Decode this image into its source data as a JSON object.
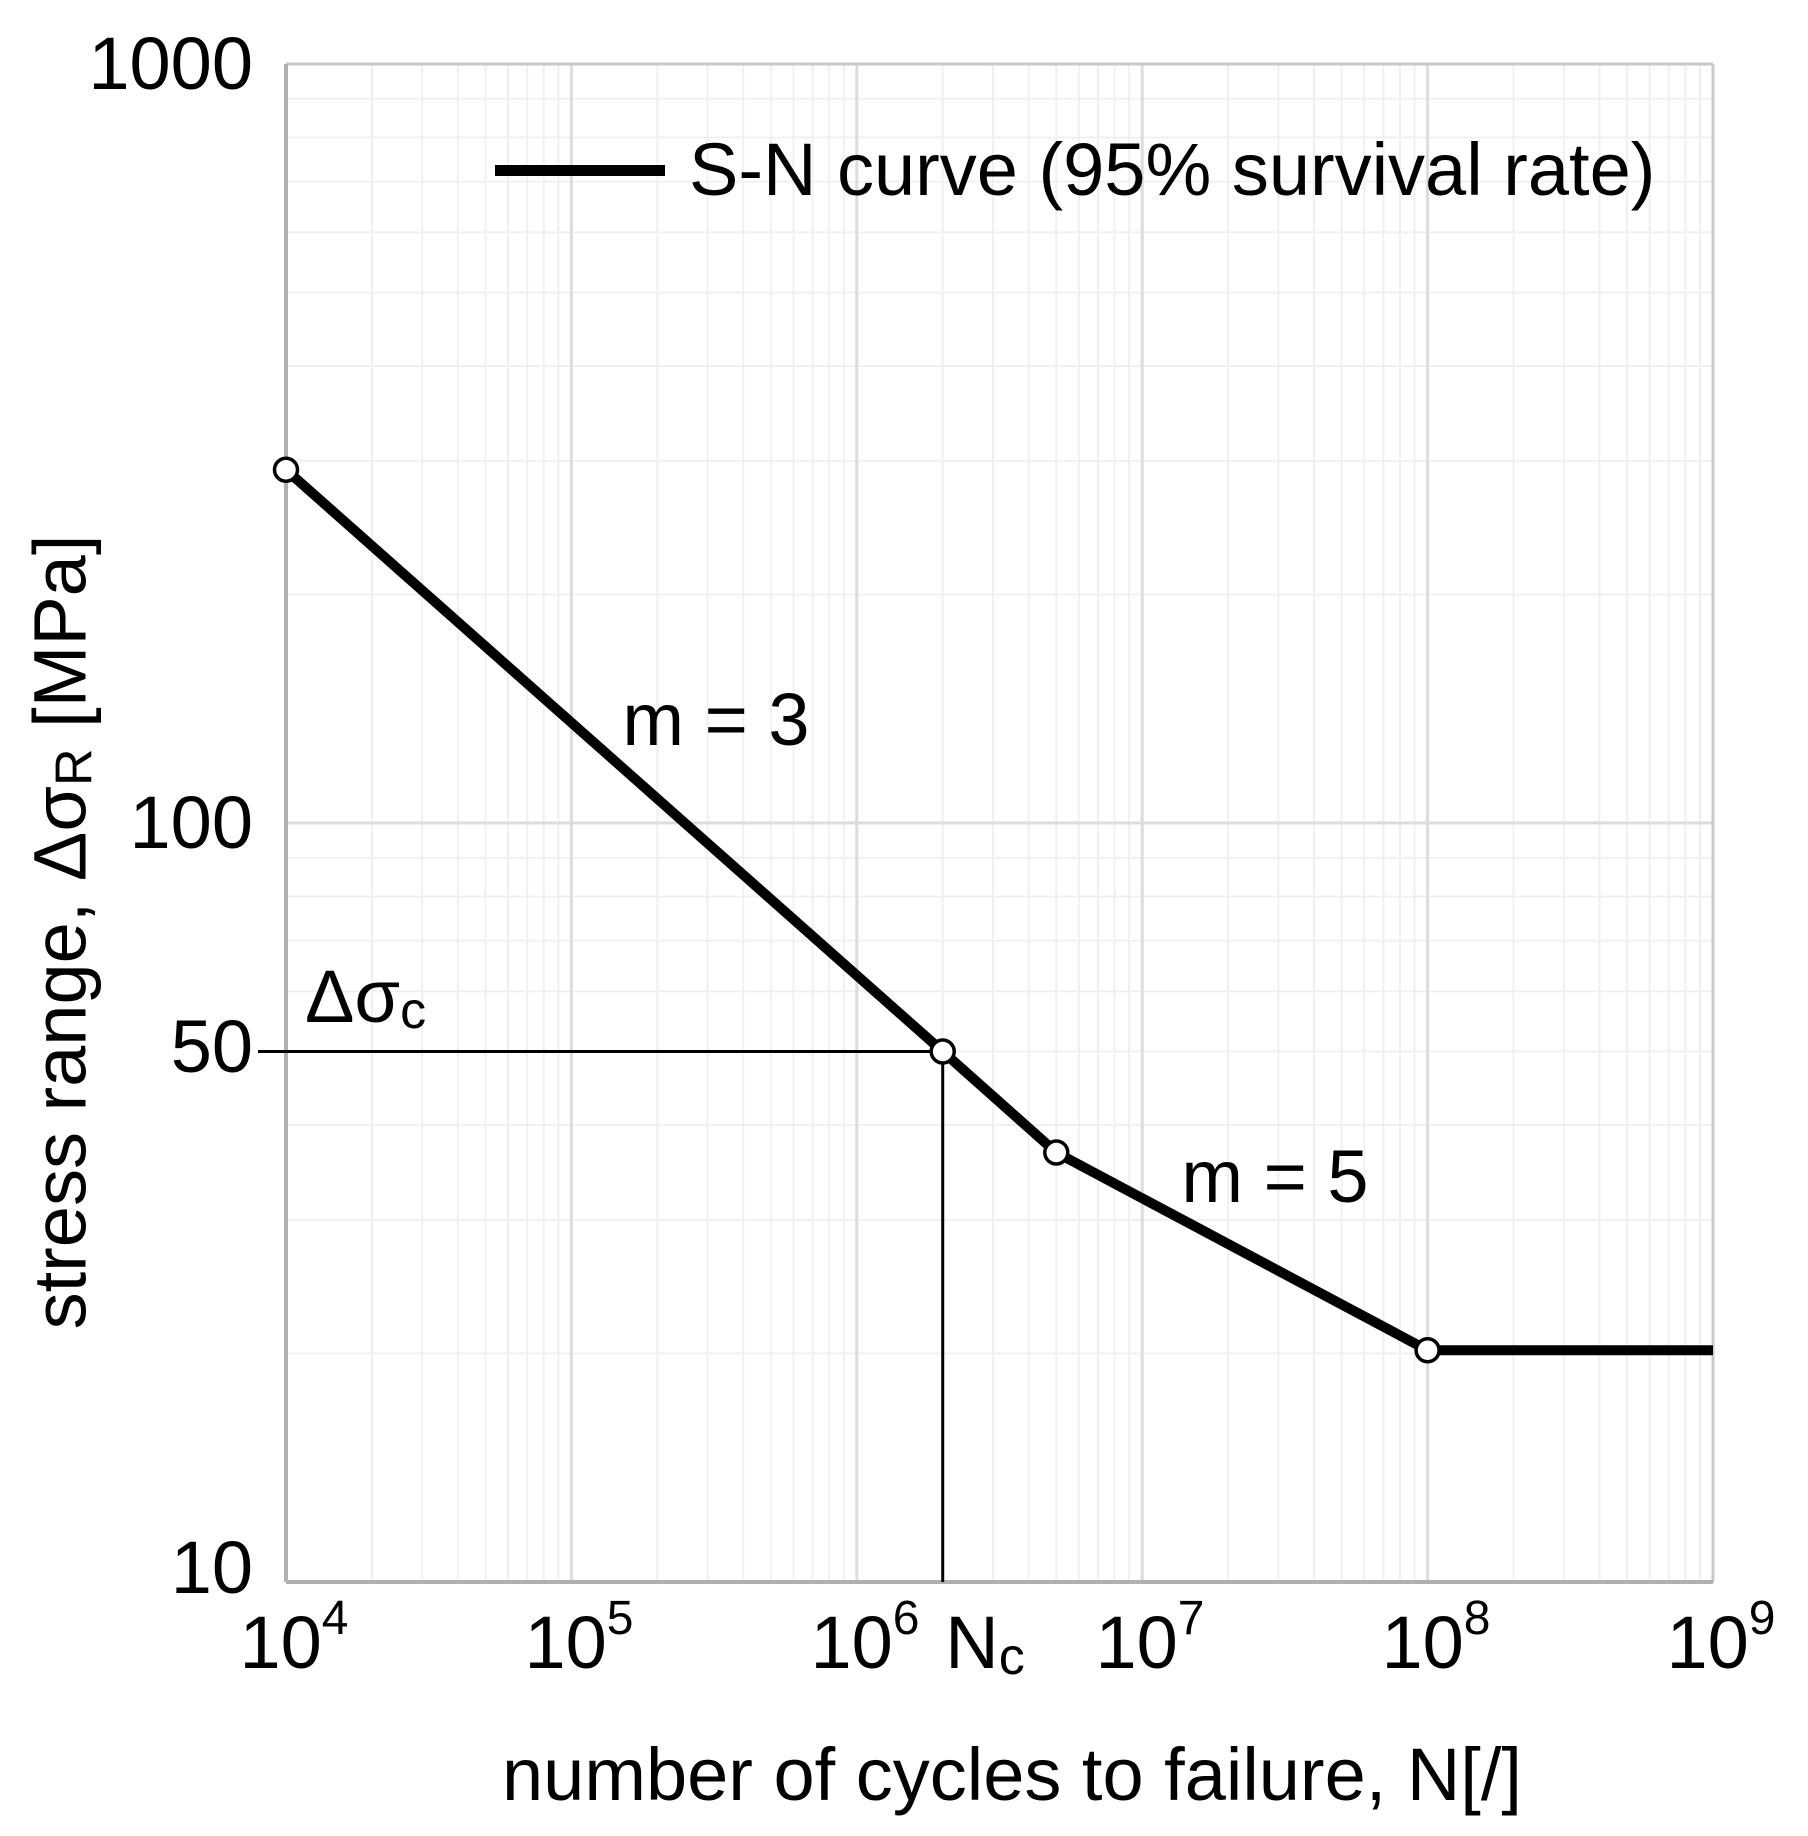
{
  "legend": {
    "label": "S-N curve (95% survival rate)"
  },
  "y_axis": {
    "title_pre": "stress range, Δσ",
    "title_sub": "R",
    "title_post": " [MPa]",
    "ticks": [
      "1000",
      "100",
      "50",
      "10"
    ]
  },
  "x_axis": {
    "title": "number of cycles to failure, N[/]",
    "ticks": [
      {
        "base": "10",
        "exp": "4"
      },
      {
        "base": "10",
        "exp": "5"
      },
      {
        "base": "10",
        "exp": "6"
      },
      {
        "base": "10",
        "exp": "7"
      },
      {
        "base": "10",
        "exp": "8"
      },
      {
        "base": "10",
        "exp": "9"
      }
    ]
  },
  "labels": {
    "delta_sigma_c_base": "Δσ",
    "delta_sigma_c_sub": "c",
    "nc_base": "N",
    "nc_sub": "c",
    "m3": "m = 3",
    "m5": "m = 5"
  },
  "chart_data": {
    "type": "line",
    "title": "",
    "xlabel": "number of cycles to failure, N[/]",
    "ylabel": "stress range, ΔσR [MPa]",
    "x_scale": "log",
    "y_scale": "log",
    "xlim": [
      10000,
      1000000000
    ],
    "ylim": [
      10,
      1000
    ],
    "grid": {
      "minor": true,
      "major": true
    },
    "legend_position": "top-center-inside",
    "colors": {
      "curve": "#000000",
      "minor_grid": "#f0f0f0",
      "major_grid": "#dcdcdc",
      "axis_frame_dark": "#b0b0b0",
      "axis_frame_light": "#c8c8c8",
      "marker_fill": "#ffffff"
    },
    "series": [
      {
        "name": "S-N curve (95% survival rate)",
        "color": "#000000",
        "width": 10,
        "points": [
          [
            10000,
            292
          ],
          [
            2000000,
            50
          ],
          [
            5000000,
            36.8
          ],
          [
            100000000,
            20.2
          ],
          [
            1000000000,
            20.2
          ]
        ]
      }
    ],
    "knee_points": [
      [
        10000,
        292
      ],
      [
        2000000,
        50
      ],
      [
        5000000,
        36.8
      ],
      [
        100000000,
        20.2
      ]
    ],
    "slopes": [
      {
        "m": 3,
        "label": "m = 3",
        "segment": "10^4 to 2x10^6"
      },
      {
        "m": 5,
        "label": "m = 5",
        "segment": "5x10^6 to 10^8"
      }
    ],
    "fatigue_values": {
      "delta_sigma_c_mpa": 50,
      "n_c_cycles": 2000000,
      "cutoff_stress_mpa": 20.2,
      "cutoff_cycles": 100000000
    },
    "reference_lines": [
      {
        "type": "h",
        "y": 50,
        "x_from": 10000,
        "x_to": 2000000,
        "label": "Δσc"
      },
      {
        "type": "v",
        "x": 2000000,
        "y_from": 10,
        "y_to": 50,
        "label": "Nc"
      }
    ],
    "x_ticks_labeled": [
      10000,
      100000,
      1000000,
      10000000,
      100000000,
      1000000000
    ],
    "y_ticks_labeled": [
      1000,
      100,
      50,
      10
    ]
  }
}
